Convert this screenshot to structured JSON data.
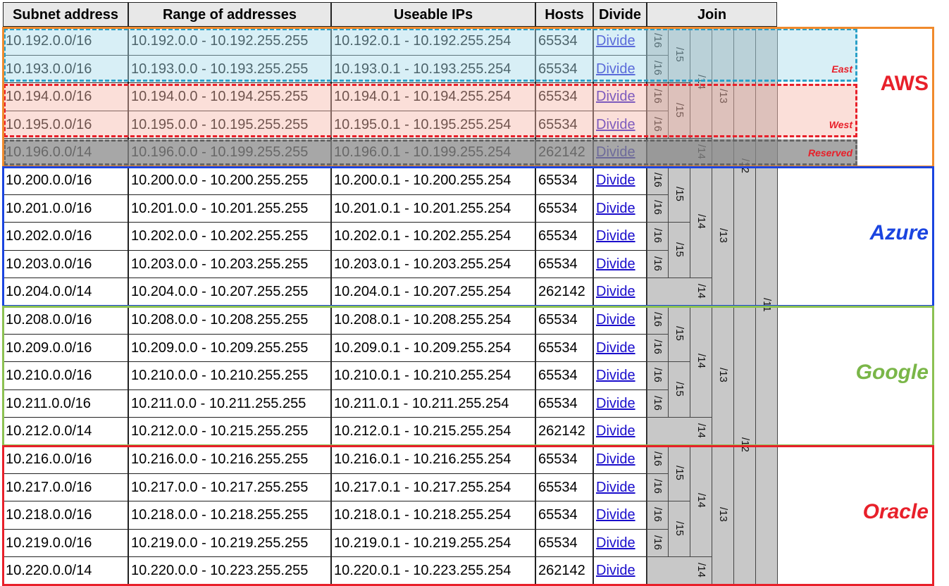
{
  "headers": {
    "subnet": "Subnet address",
    "range": "Range of addresses",
    "useable": "Useable IPs",
    "hosts": "Hosts",
    "divide": "Divide",
    "join": "Join"
  },
  "rows": [
    {
      "subnet": "10.192.0.0/16",
      "range": "10.192.0.0 - 10.192.255.255",
      "useable": "10.192.0.1 - 10.192.255.254",
      "hosts": "65534",
      "action": "Divide"
    },
    {
      "subnet": "10.193.0.0/16",
      "range": "10.193.0.0 - 10.193.255.255",
      "useable": "10.193.0.1 - 10.193.255.254",
      "hosts": "65534",
      "action": "Divide"
    },
    {
      "subnet": "10.194.0.0/16",
      "range": "10.194.0.0 - 10.194.255.255",
      "useable": "10.194.0.1 - 10.194.255.254",
      "hosts": "65534",
      "action": "Divide"
    },
    {
      "subnet": "10.195.0.0/16",
      "range": "10.195.0.0 - 10.195.255.255",
      "useable": "10.195.0.1 - 10.195.255.254",
      "hosts": "65534",
      "action": "Divide"
    },
    {
      "subnet": "10.196.0.0/14",
      "range": "10.196.0.0 - 10.199.255.255",
      "useable": "10.196.0.1 - 10.199.255.254",
      "hosts": "262142",
      "action": "Divide"
    },
    {
      "subnet": "10.200.0.0/16",
      "range": "10.200.0.0 - 10.200.255.255",
      "useable": "10.200.0.1 - 10.200.255.254",
      "hosts": "65534",
      "action": "Divide"
    },
    {
      "subnet": "10.201.0.0/16",
      "range": "10.201.0.0 - 10.201.255.255",
      "useable": "10.201.0.1 - 10.201.255.254",
      "hosts": "65534",
      "action": "Divide"
    },
    {
      "subnet": "10.202.0.0/16",
      "range": "10.202.0.0 - 10.202.255.255",
      "useable": "10.202.0.1 - 10.202.255.254",
      "hosts": "65534",
      "action": "Divide"
    },
    {
      "subnet": "10.203.0.0/16",
      "range": "10.203.0.0 - 10.203.255.255",
      "useable": "10.203.0.1 - 10.203.255.254",
      "hosts": "65534",
      "action": "Divide"
    },
    {
      "subnet": "10.204.0.0/14",
      "range": "10.204.0.0 - 10.207.255.255",
      "useable": "10.204.0.1 - 10.207.255.254",
      "hosts": "262142",
      "action": "Divide"
    },
    {
      "subnet": "10.208.0.0/16",
      "range": "10.208.0.0 - 10.208.255.255",
      "useable": "10.208.0.1 - 10.208.255.254",
      "hosts": "65534",
      "action": "Divide"
    },
    {
      "subnet": "10.209.0.0/16",
      "range": "10.209.0.0 - 10.209.255.255",
      "useable": "10.209.0.1 - 10.209.255.254",
      "hosts": "65534",
      "action": "Divide"
    },
    {
      "subnet": "10.210.0.0/16",
      "range": "10.210.0.0 - 10.210.255.255",
      "useable": "10.210.0.1 - 10.210.255.254",
      "hosts": "65534",
      "action": "Divide"
    },
    {
      "subnet": "10.211.0.0/16",
      "range": "10.211.0.0 - 10.211.255.255",
      "useable": "10.211.0.1 - 10.211.255.254",
      "hosts": "65534",
      "action": "Divide"
    },
    {
      "subnet": "10.212.0.0/14",
      "range": "10.212.0.0 - 10.215.255.255",
      "useable": "10.212.0.1 - 10.215.255.254",
      "hosts": "262142",
      "action": "Divide"
    },
    {
      "subnet": "10.216.0.0/16",
      "range": "10.216.0.0 - 10.216.255.255",
      "useable": "10.216.0.1 - 10.216.255.254",
      "hosts": "65534",
      "action": "Divide"
    },
    {
      "subnet": "10.217.0.0/16",
      "range": "10.217.0.0 - 10.217.255.255",
      "useable": "10.217.0.1 - 10.217.255.254",
      "hosts": "65534",
      "action": "Divide"
    },
    {
      "subnet": "10.218.0.0/16",
      "range": "10.218.0.0 - 10.218.255.255",
      "useable": "10.218.0.1 - 10.218.255.254",
      "hosts": "65534",
      "action": "Divide"
    },
    {
      "subnet": "10.219.0.0/16",
      "range": "10.219.0.0 - 10.219.255.255",
      "useable": "10.219.0.1 - 10.219.255.254",
      "hosts": "65534",
      "action": "Divide"
    },
    {
      "subnet": "10.220.0.0/14",
      "range": "10.220.0.0 - 10.223.255.255",
      "useable": "10.220.0.1 - 10.223.255.254",
      "hosts": "262142",
      "action": "Divide"
    }
  ],
  "join_labels": {
    "p16": "/16",
    "p15": "/15",
    "p14": "/14",
    "p13": "/13",
    "p12": "/12",
    "p11": "/11"
  },
  "groups": {
    "aws": {
      "label": "AWS",
      "color": "#e8202a",
      "border": "#f08a2c"
    },
    "azure": {
      "label": "Azure",
      "color": "#1a44e0",
      "border": "#1a44e0"
    },
    "google": {
      "label": "Google",
      "color": "#7ab648",
      "border": "#8cc152"
    },
    "oracle": {
      "label": "Oracle",
      "color": "#e8202a",
      "border": "#e8202a"
    }
  },
  "regions": {
    "east": {
      "label": "East",
      "color": "#e8202a",
      "fill": "#a8dcec",
      "border": "#2aa0c8"
    },
    "west": {
      "label": "West",
      "color": "#e8202a",
      "fill": "#f6b7ab",
      "border": "#e8202a"
    },
    "reserved": {
      "label": "Reserved",
      "color": "#e8202a",
      "fill": "#8a8a8a",
      "border": "#666666"
    }
  }
}
